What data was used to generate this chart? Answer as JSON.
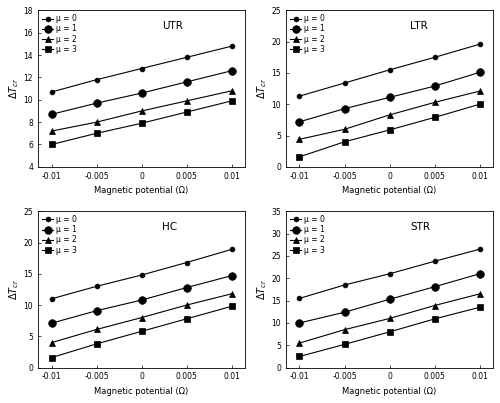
{
  "x": [
    -0.01,
    -0.005,
    0,
    0.005,
    0.01
  ],
  "panels": [
    {
      "title": "UTR",
      "ylim": [
        4,
        18
      ],
      "yticks": [
        4,
        6,
        8,
        10,
        12,
        14,
        16,
        18
      ],
      "series": [
        {
          "label": "μ = 0",
          "marker": "o",
          "markersize": 3.5,
          "y": [
            10.7,
            11.8,
            12.8,
            13.8,
            14.8
          ]
        },
        {
          "label": "μ = 1",
          "marker": "o",
          "markersize": 5.5,
          "y": [
            8.7,
            9.7,
            10.6,
            11.6,
            12.6
          ]
        },
        {
          "label": "μ = 2",
          "marker": "^",
          "markersize": 4.5,
          "y": [
            7.2,
            8.0,
            9.0,
            9.9,
            10.8
          ]
        },
        {
          "label": "μ = 3",
          "marker": "s",
          "markersize": 4.0,
          "y": [
            6.0,
            7.0,
            7.9,
            8.9,
            9.9
          ]
        }
      ]
    },
    {
      "title": "LTR",
      "ylim": [
        0,
        25
      ],
      "yticks": [
        0,
        5,
        10,
        15,
        20,
        25
      ],
      "series": [
        {
          "label": "μ = 0",
          "marker": "o",
          "markersize": 3.5,
          "y": [
            11.3,
            13.4,
            15.5,
            17.5,
            19.6
          ]
        },
        {
          "label": "μ = 1",
          "marker": "o",
          "markersize": 5.5,
          "y": [
            7.2,
            9.3,
            11.1,
            12.9,
            15.1
          ]
        },
        {
          "label": "μ = 2",
          "marker": "^",
          "markersize": 4.5,
          "y": [
            4.4,
            6.0,
            8.3,
            10.3,
            12.1
          ]
        },
        {
          "label": "μ = 3",
          "marker": "s",
          "markersize": 4.0,
          "y": [
            1.6,
            4.0,
            5.9,
            7.9,
            10.0
          ]
        }
      ]
    },
    {
      "title": "HC",
      "ylim": [
        0,
        25
      ],
      "yticks": [
        0,
        5,
        10,
        15,
        20,
        25
      ],
      "series": [
        {
          "label": "μ = 0",
          "marker": "o",
          "markersize": 3.5,
          "y": [
            11.0,
            13.0,
            14.8,
            16.8,
            18.9
          ]
        },
        {
          "label": "μ = 1",
          "marker": "o",
          "markersize": 5.5,
          "y": [
            7.1,
            9.1,
            10.8,
            12.8,
            14.7
          ]
        },
        {
          "label": "μ = 2",
          "marker": "^",
          "markersize": 4.5,
          "y": [
            4.0,
            6.1,
            8.0,
            10.0,
            11.8
          ]
        },
        {
          "label": "μ = 3",
          "marker": "s",
          "markersize": 4.0,
          "y": [
            1.6,
            3.8,
            5.8,
            7.8,
            9.8
          ]
        }
      ]
    },
    {
      "title": "STR",
      "ylim": [
        0,
        35
      ],
      "yticks": [
        0,
        5,
        10,
        15,
        20,
        25,
        30,
        35
      ],
      "series": [
        {
          "label": "μ = 0",
          "marker": "o",
          "markersize": 3.5,
          "y": [
            15.5,
            18.5,
            21.0,
            23.8,
            26.5
          ]
        },
        {
          "label": "μ = 1",
          "marker": "o",
          "markersize": 5.5,
          "y": [
            10.0,
            12.4,
            15.3,
            18.1,
            21.0
          ]
        },
        {
          "label": "μ = 2",
          "marker": "^",
          "markersize": 4.5,
          "y": [
            5.5,
            8.5,
            11.0,
            13.9,
            16.5
          ]
        },
        {
          "label": "μ = 3",
          "marker": "s",
          "markersize": 4.0,
          "y": [
            2.5,
            5.2,
            8.0,
            10.9,
            13.5
          ]
        }
      ]
    }
  ],
  "xlabel": "Magnetic potential (Ω)",
  "xticks": [
    -0.01,
    -0.005,
    0,
    0.005,
    0.01
  ],
  "line_color": "black",
  "legend_labels": [
    "μ = 0",
    "μ = 1",
    "μ = 2",
    "μ = 3"
  ]
}
